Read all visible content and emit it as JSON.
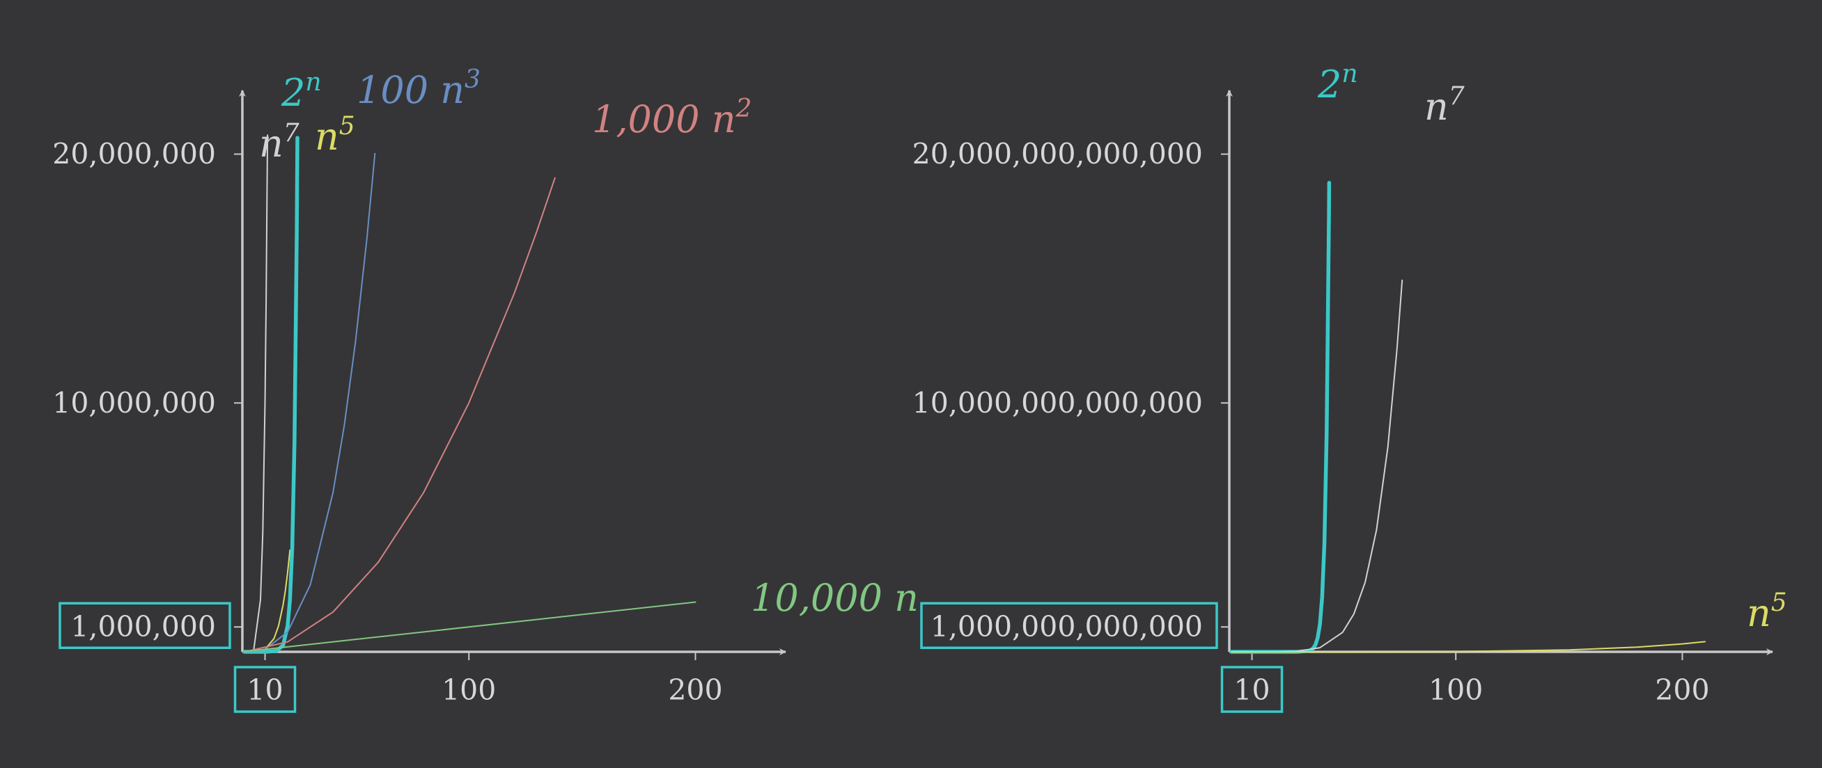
{
  "chart_data": [
    {
      "type": "line",
      "title": "",
      "xlabel": "",
      "ylabel": "",
      "xlim": [
        0,
        218
      ],
      "ylim": [
        0,
        22000000
      ],
      "x_ticks": [
        {
          "value": 10,
          "label": "10",
          "highlighted": true
        },
        {
          "value": 100,
          "label": "100",
          "highlighted": false
        },
        {
          "value": 200,
          "label": "200",
          "highlighted": false
        }
      ],
      "y_ticks": [
        {
          "value": 1000000,
          "label": "1,000,000",
          "highlighted": true
        },
        {
          "value": 10000000,
          "label": "10,000,000",
          "highlighted": false
        },
        {
          "value": 20000000,
          "label": "20,000,000",
          "highlighted": false
        }
      ],
      "grid": false,
      "series": [
        {
          "name": "n^7",
          "base": "n",
          "sup": "7",
          "color": "#d2d2d2",
          "bold": false,
          "x": [
            1,
            5,
            8,
            9,
            10,
            10.5,
            11.1
          ],
          "y": [
            1,
            78125,
            2097152,
            4782969,
            10000000,
            14071004,
            20762557
          ]
        },
        {
          "name": "n^5",
          "base": "n",
          "sup": "5",
          "color": "#dcdc64",
          "bold": false,
          "x": [
            1,
            10,
            14,
            16,
            18,
            19,
            20,
            21
          ],
          "y": [
            1,
            100000,
            537824,
            1048576,
            1889568,
            2476099,
            3200000,
            4084101
          ]
        },
        {
          "name": "2^n",
          "base": "2",
          "sup": "n",
          "color": "#3cc8c8",
          "bold": true,
          "x": [
            1,
            10,
            15,
            18,
            20,
            21,
            22,
            23,
            24,
            24.3
          ],
          "y": [
            2,
            1024,
            32768,
            262144,
            1048576,
            2097152,
            4194304,
            8388608,
            16777216,
            20655069
          ]
        },
        {
          "name": "100 n^3",
          "base": "100 n",
          "sup": "3",
          "color": "#6a8ec4",
          "bold": false,
          "x": [
            1,
            10,
            20,
            30,
            40,
            45,
            50,
            55,
            58.5
          ],
          "y": [
            100,
            100000,
            800000,
            2700000,
            6400000,
            9112500,
            12500000,
            16637500,
            20020000
          ]
        },
        {
          "name": "1,000 n^2",
          "base": "1,000 n",
          "sup": "2",
          "color": "#d28282",
          "bold": false,
          "x": [
            1,
            20,
            40,
            60,
            80,
            100,
            120,
            130,
            138
          ],
          "y": [
            1000,
            400000,
            1600000,
            3600000,
            6400000,
            10000000,
            14400000,
            16900000,
            19044000
          ]
        },
        {
          "name": "10,000 n",
          "base": "10,000 n",
          "sup": "",
          "color": "#82c882",
          "bold": false,
          "x": [
            1,
            200
          ],
          "y": [
            10000,
            2000000
          ]
        }
      ]
    },
    {
      "type": "line",
      "title": "",
      "xlabel": "",
      "ylabel": "",
      "xlim": [
        0,
        218
      ],
      "ylim": [
        0,
        22000000000000
      ],
      "x_ticks": [
        {
          "value": 10,
          "label": "10",
          "highlighted": true
        },
        {
          "value": 100,
          "label": "100",
          "highlighted": false
        },
        {
          "value": 200,
          "label": "200",
          "highlighted": false
        }
      ],
      "y_ticks": [
        {
          "value": 1000000000000,
          "label": "1,000,000,000,000",
          "highlighted": true
        },
        {
          "value": 10000000000000,
          "label": "10,000,000,000,000",
          "highlighted": false
        },
        {
          "value": 20000000000000,
          "label": "20,000,000,000,000",
          "highlighted": false
        }
      ],
      "grid": false,
      "series": [
        {
          "name": "2^n",
          "base": "2",
          "sup": "n",
          "color": "#3cc8c8",
          "bold": true,
          "x": [
            1,
            30,
            35,
            36,
            37,
            38,
            39,
            40,
            41,
            42,
            43,
            44,
            44.1
          ],
          "y": [
            2,
            1073741824,
            34359738368,
            68719476736,
            137438953472,
            274877906944,
            549755813888,
            1099511627776,
            2199023255552,
            4398046511104,
            8796093022208,
            17592186044416,
            18850000000000
          ]
        },
        {
          "name": "n^7",
          "base": "n",
          "sup": "7",
          "color": "#d2d2d2",
          "bold": false,
          "x": [
            1,
            20,
            30,
            40,
            50,
            55,
            60,
            65,
            70,
            74,
            76.3
          ],
          "y": [
            1,
            1280000000,
            21870000000,
            163840000000,
            781250000000,
            1522435234375,
            2799360000000,
            4902227890625,
            8235430000000,
            12151280273024,
            14929000000000
          ]
        },
        {
          "name": "n^5",
          "base": "n",
          "sup": "5",
          "color": "#dcdc64",
          "bold": false,
          "x": [
            1,
            50,
            100,
            150,
            180,
            200,
            210
          ],
          "y": [
            1,
            312500000,
            10000000000,
            75937500000,
            188956800000,
            320000000000,
            408410100000
          ]
        }
      ]
    }
  ]
}
